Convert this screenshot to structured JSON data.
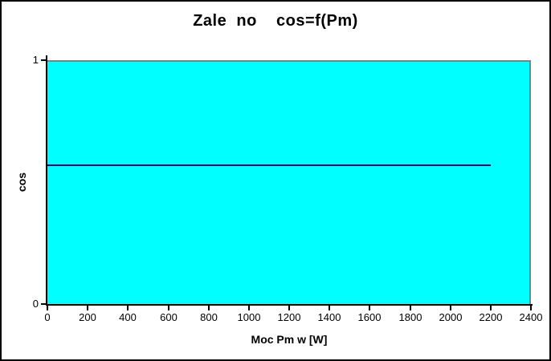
{
  "window": {
    "background_color": "#FFFFFF",
    "border_color": "#000000"
  },
  "chart_data": {
    "type": "line",
    "title": "Zale  no    cos=f(Pm)",
    "xlabel": "Moc Pm w [W]",
    "ylabel": "cos",
    "xlim": [
      0,
      2400
    ],
    "ylim": [
      0,
      1
    ],
    "x_ticks": [
      0,
      200,
      400,
      600,
      800,
      1000,
      1200,
      1400,
      1600,
      1800,
      2000,
      2200,
      2400
    ],
    "y_ticks": [
      0,
      1
    ],
    "grid": false,
    "legend": false,
    "plot_bg_color": "#00FFFF",
    "plot_border_color": "#808080",
    "axis_color": "#000000",
    "series": [
      {
        "name": "cos",
        "color": "#000080",
        "x": [
          0,
          2200
        ],
        "y": [
          0.57,
          0.57
        ]
      }
    ]
  }
}
